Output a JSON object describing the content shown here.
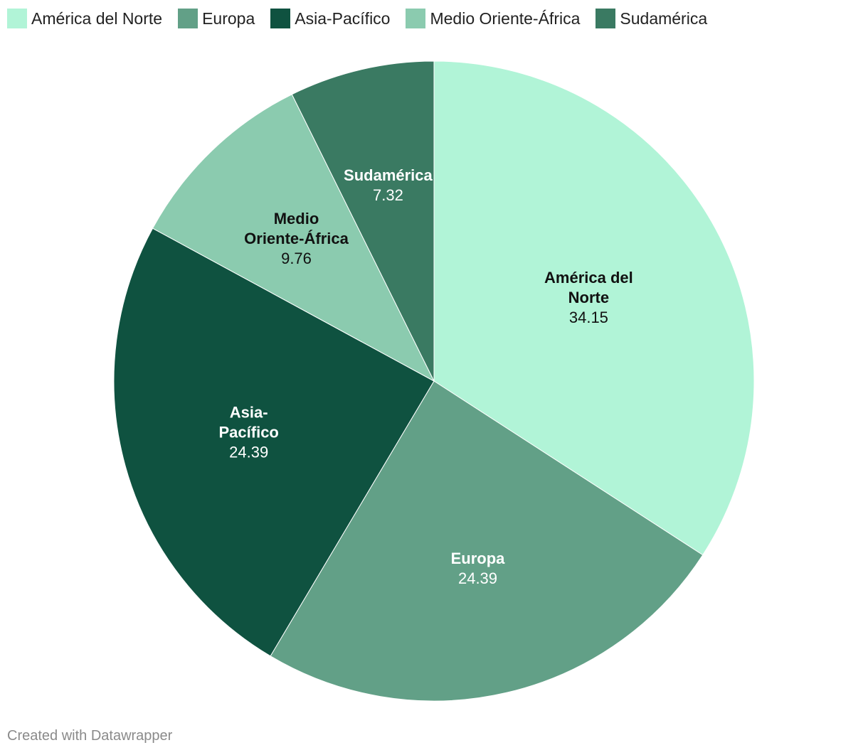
{
  "chart_data": {
    "type": "pie",
    "categories": [
      "América del Norte",
      "Europa",
      "Asia-Pacífico",
      "Medio Oriente-África",
      "Sudamérica"
    ],
    "values": [
      34.15,
      24.39,
      24.39,
      9.76,
      7.32
    ],
    "value_labels": [
      "34.15",
      "24.39",
      "24.39",
      "9.76",
      "7.32"
    ],
    "slice_label_lines": [
      [
        "América del",
        "Norte"
      ],
      [
        "Europa"
      ],
      [
        "Asia-",
        "Pacífico"
      ],
      [
        "Medio",
        "Oriente-África"
      ],
      [
        "Sudamérica"
      ]
    ],
    "colors": [
      "#b1f4d7",
      "#62a087",
      "#0f5240",
      "#8bcbaf",
      "#3a7a62"
    ],
    "label_colors": [
      "#111111",
      "#ffffff",
      "#ffffff",
      "#111111",
      "#ffffff"
    ],
    "legend_position": "top-left"
  },
  "footer": {
    "credit": "Created with Datawrapper"
  }
}
